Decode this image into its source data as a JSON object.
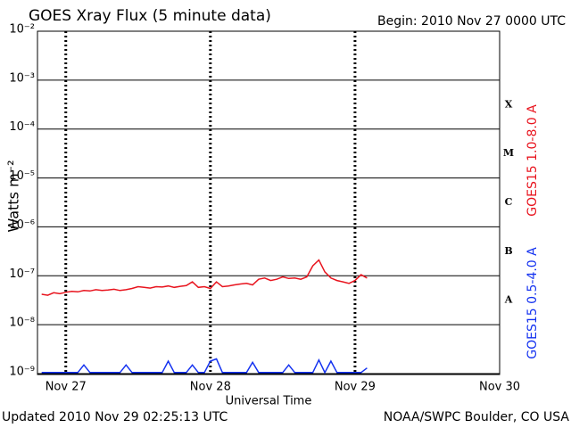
{
  "chart_data": {
    "type": "line",
    "title": "GOES Xray Flux (5 minute data)",
    "subtitle": "Begin:  2010 Nov 27 0000 UTC",
    "xlabel": "Universal Time",
    "ylabel": "Watts m⁻²",
    "footer_left": "Updated 2010 Nov 29 02:25:13 UTC",
    "footer_right": "NOAA/SWPC Boulder, CO USA",
    "log_y": true,
    "grid": true,
    "flare_classes": [
      "X",
      "M",
      "C",
      "B",
      "A"
    ],
    "xlim": [
      -4.7,
      72
    ],
    "xticks": [
      {
        "value": 0,
        "label": "Nov 27"
      },
      {
        "value": 24,
        "label": "Nov 28"
      },
      {
        "value": 48,
        "label": "Nov 29"
      },
      {
        "value": 72,
        "label": "Nov 30"
      }
    ],
    "ylim": [
      1e-09,
      0.01
    ],
    "yticks": [
      {
        "value": 1e-09,
        "label": "10⁻⁹"
      },
      {
        "value": 1e-08,
        "label": "10⁻⁸"
      },
      {
        "value": 1e-07,
        "label": "10⁻⁷"
      },
      {
        "value": 1e-06,
        "label": "10⁻⁶"
      },
      {
        "value": 1e-05,
        "label": "10⁻⁵"
      },
      {
        "value": 0.0001,
        "label": "10⁻⁴"
      },
      {
        "value": 0.001,
        "label": "10⁻³"
      },
      {
        "value": 0.01,
        "label": "10⁻²"
      }
    ],
    "x": [
      -4,
      -3,
      -2,
      -1,
      0,
      1,
      2,
      3,
      4,
      5,
      6,
      7,
      8,
      9,
      10,
      11,
      12,
      13,
      14,
      15,
      16,
      17,
      18,
      19,
      20,
      21,
      22,
      23,
      24,
      25,
      26,
      27,
      28,
      29,
      30,
      31,
      32,
      33,
      34,
      35,
      36,
      37,
      38,
      39,
      40,
      41,
      42,
      43,
      44,
      45,
      46,
      47,
      48,
      49,
      50
    ],
    "series": [
      {
        "name": "GOES15 1.0-8.0 A",
        "color": "#e8141e",
        "values": [
          4.2e-08,
          4e-08,
          4.5e-08,
          4.3e-08,
          4.6e-08,
          4.8e-08,
          4.7e-08,
          5e-08,
          4.9e-08,
          5.2e-08,
          5e-08,
          5.1e-08,
          5.3e-08,
          5e-08,
          5.2e-08,
          5.5e-08,
          6e-08,
          5.8e-08,
          5.6e-08,
          6e-08,
          5.9e-08,
          6.2e-08,
          5.8e-08,
          6.1e-08,
          6.3e-08,
          7.5e-08,
          5.8e-08,
          6e-08,
          5.5e-08,
          7.5e-08,
          6e-08,
          6.2e-08,
          6.5e-08,
          6.8e-08,
          7e-08,
          6.5e-08,
          8.5e-08,
          9e-08,
          8e-08,
          8.5e-08,
          9.5e-08,
          8.8e-08,
          9e-08,
          8.5e-08,
          9.5e-08,
          1.6e-07,
          2.1e-07,
          1.2e-07,
          9e-08,
          8e-08,
          7.5e-08,
          7e-08,
          8e-08,
          1.05e-07,
          9e-08
        ]
      },
      {
        "name": "GOES15 0.5-4.0 A",
        "color": "#1432f0",
        "values": [
          1.05e-09,
          1.05e-09,
          1.05e-09,
          1.05e-09,
          1.05e-09,
          1.05e-09,
          1.05e-09,
          1.5e-09,
          1.05e-09,
          1.05e-09,
          1.05e-09,
          1.05e-09,
          1.05e-09,
          1.05e-09,
          1.5e-09,
          1.05e-09,
          1.05e-09,
          1.05e-09,
          1.05e-09,
          1.05e-09,
          1.05e-09,
          1.8e-09,
          1.05e-09,
          1.05e-09,
          1.05e-09,
          1.5e-09,
          1.05e-09,
          1.05e-09,
          1.8e-09,
          2e-09,
          1.05e-09,
          1.05e-09,
          1.05e-09,
          1.05e-09,
          1.05e-09,
          1.7e-09,
          1.05e-09,
          1.05e-09,
          1.05e-09,
          1.05e-09,
          1.05e-09,
          1.5e-09,
          1.05e-09,
          1.05e-09,
          1.05e-09,
          1.05e-09,
          1.9e-09,
          1.05e-09,
          1.8e-09,
          1.05e-09,
          1.05e-09,
          1.05e-09,
          1.05e-09,
          1.05e-09,
          1.3e-09
        ]
      }
    ]
  }
}
